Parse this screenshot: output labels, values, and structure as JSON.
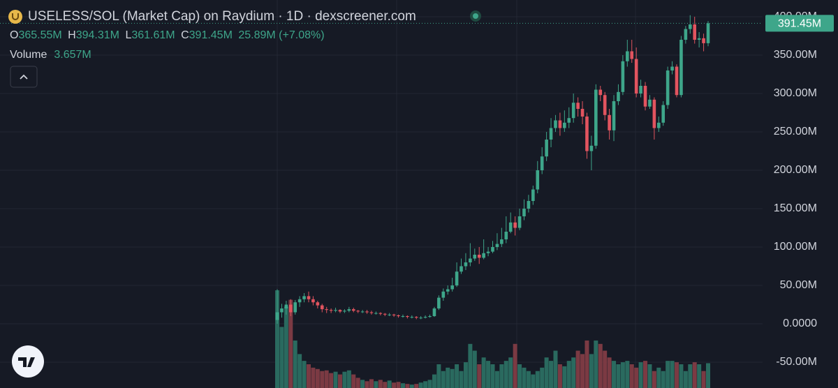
{
  "chart_data": {
    "type": "candlestick",
    "title": "USELESS/SOL (Market Cap) on Raydium · 1D · dexscreener.com",
    "ohlc_legend": {
      "open": {
        "label": "O",
        "text": "365.55M"
      },
      "high": {
        "label": "H",
        "text": "394.31M"
      },
      "low": {
        "label": "L",
        "text": "361.61M"
      },
      "close": {
        "label": "C",
        "text": "391.45M"
      },
      "change": "25.89M (+7.08%)"
    },
    "volume_legend": {
      "label": "Volume",
      "text": "3.657M"
    },
    "last_price_label": "391.45M",
    "up_color": "#3ea68a",
    "down_color": "#e2545f",
    "volume_up_color": "#2a6a5f",
    "volume_down_color": "#7b3a43",
    "ylim": [
      -83.64,
      421.82
    ],
    "yticks": [
      {
        "value": -50,
        "label": "-50.00M"
      },
      {
        "value": 0,
        "label": "0.0000"
      },
      {
        "value": 50,
        "label": "50.00M"
      },
      {
        "value": 100,
        "label": "100.00M"
      },
      {
        "value": 150,
        "label": "150.00M"
      },
      {
        "value": 200,
        "label": "200.00M"
      },
      {
        "value": 250,
        "label": "250.00M"
      },
      {
        "value": 300,
        "label": "300.00M"
      },
      {
        "value": 350,
        "label": "350.00M"
      },
      {
        "value": 400,
        "label": "400.00M"
      }
    ],
    "open": [
      5,
      15,
      20,
      25,
      15,
      28,
      32,
      36,
      32,
      28,
      24,
      19,
      18,
      17,
      18,
      16,
      17,
      19,
      17,
      16,
      16,
      15,
      14,
      14,
      13,
      12,
      12,
      11,
      10,
      10,
      9,
      9,
      8,
      8,
      9,
      10,
      20,
      34,
      42,
      45,
      50,
      68,
      75,
      80,
      85,
      90,
      86,
      92,
      94,
      100,
      104,
      110,
      120,
      132,
      125,
      140,
      150,
      160,
      175,
      200,
      218,
      240,
      255,
      265,
      255,
      262,
      268,
      288,
      280,
      270,
      225,
      232,
      305,
      298,
      272,
      252,
      290,
      302,
      342,
      355,
      345,
      300,
      310,
      283,
      292,
      255,
      262,
      285,
      330,
      335,
      298,
      370,
      384,
      390,
      370,
      372,
      365.55
    ],
    "high": [
      45,
      26,
      30,
      32,
      31,
      36,
      40,
      42,
      36,
      30,
      26,
      22,
      20,
      21,
      19,
      19,
      22,
      21,
      18,
      18,
      18,
      17,
      16,
      15,
      14,
      14,
      13,
      12,
      12,
      11,
      11,
      10,
      10,
      11,
      12,
      22,
      37,
      46,
      50,
      60,
      80,
      85,
      92,
      105,
      98,
      100,
      110,
      100,
      108,
      118,
      125,
      140,
      145,
      140,
      150,
      162,
      168,
      180,
      212,
      230,
      250,
      268,
      272,
      275,
      278,
      282,
      300,
      295,
      290,
      275,
      245,
      312,
      310,
      302,
      280,
      298,
      312,
      350,
      370,
      370,
      360,
      318,
      315,
      298,
      295,
      270,
      290,
      335,
      342,
      338,
      375,
      388,
      402,
      400,
      380,
      378,
      394.31
    ],
    "low": [
      0,
      8,
      12,
      10,
      12,
      22,
      28,
      28,
      24,
      20,
      15,
      14,
      14,
      15,
      14,
      14,
      15,
      15,
      14,
      14,
      13,
      12,
      12,
      11,
      10,
      10,
      9,
      8,
      8,
      7,
      7,
      6,
      6,
      7,
      8,
      9,
      18,
      30,
      38,
      42,
      48,
      65,
      70,
      75,
      82,
      78,
      84,
      88,
      92,
      96,
      100,
      105,
      118,
      115,
      122,
      135,
      145,
      155,
      170,
      195,
      212,
      230,
      250,
      245,
      250,
      255,
      262,
      270,
      260,
      215,
      200,
      228,
      290,
      265,
      240,
      238,
      285,
      298,
      335,
      340,
      295,
      295,
      278,
      280,
      240,
      250,
      258,
      280,
      325,
      295,
      295,
      365,
      378,
      365,
      360,
      355,
      361.61
    ],
    "close": [
      15,
      20,
      25,
      15,
      28,
      32,
      36,
      32,
      28,
      24,
      19,
      18,
      17,
      18,
      16,
      17,
      19,
      17,
      16,
      16,
      15,
      14,
      14,
      13,
      12,
      12,
      11,
      10,
      10,
      9,
      9,
      8,
      8,
      9,
      10,
      20,
      34,
      42,
      45,
      50,
      68,
      75,
      80,
      85,
      90,
      86,
      92,
      94,
      100,
      104,
      110,
      120,
      132,
      125,
      140,
      150,
      160,
      175,
      200,
      218,
      240,
      255,
      265,
      255,
      262,
      268,
      288,
      280,
      270,
      225,
      232,
      305,
      298,
      272,
      252,
      290,
      302,
      342,
      355,
      345,
      300,
      310,
      283,
      292,
      255,
      262,
      285,
      330,
      335,
      298,
      370,
      384,
      390,
      370,
      372,
      365.55,
      391.45
    ],
    "volume": [
      14.4,
      9,
      12,
      13,
      7,
      5,
      4,
      3.5,
      3,
      2.8,
      2.5,
      2.6,
      2.2,
      2.4,
      2,
      2.4,
      2.6,
      2,
      1.5,
      1.2,
      1,
      1.3,
      1,
      1.2,
      0.9,
      1.1,
      0.8,
      0.9,
      0.7,
      0.6,
      0.5,
      0.6,
      0.8,
      1,
      1.2,
      2,
      3.5,
      2.5,
      3,
      2.8,
      3.5,
      2.5,
      3.8,
      6.5,
      5.5,
      3.5,
      4.5,
      4,
      3.5,
      2.5,
      3.5,
      4,
      4.5,
      6.5,
      3.5,
      3,
      2.5,
      2,
      2.5,
      3,
      4.5,
      4,
      5.5,
      3.5,
      3.2,
      4,
      4.5,
      5.5,
      5,
      7,
      5,
      7,
      6.5,
      5.5,
      4.5,
      4,
      3.5,
      3.8,
      4,
      3.5,
      3,
      3.8,
      4,
      3.5,
      2.5,
      3,
      2.5,
      4,
      4,
      3.8,
      3.5,
      2.5,
      3.5,
      3.8,
      3.5,
      2.5,
      3.657
    ]
  }
}
